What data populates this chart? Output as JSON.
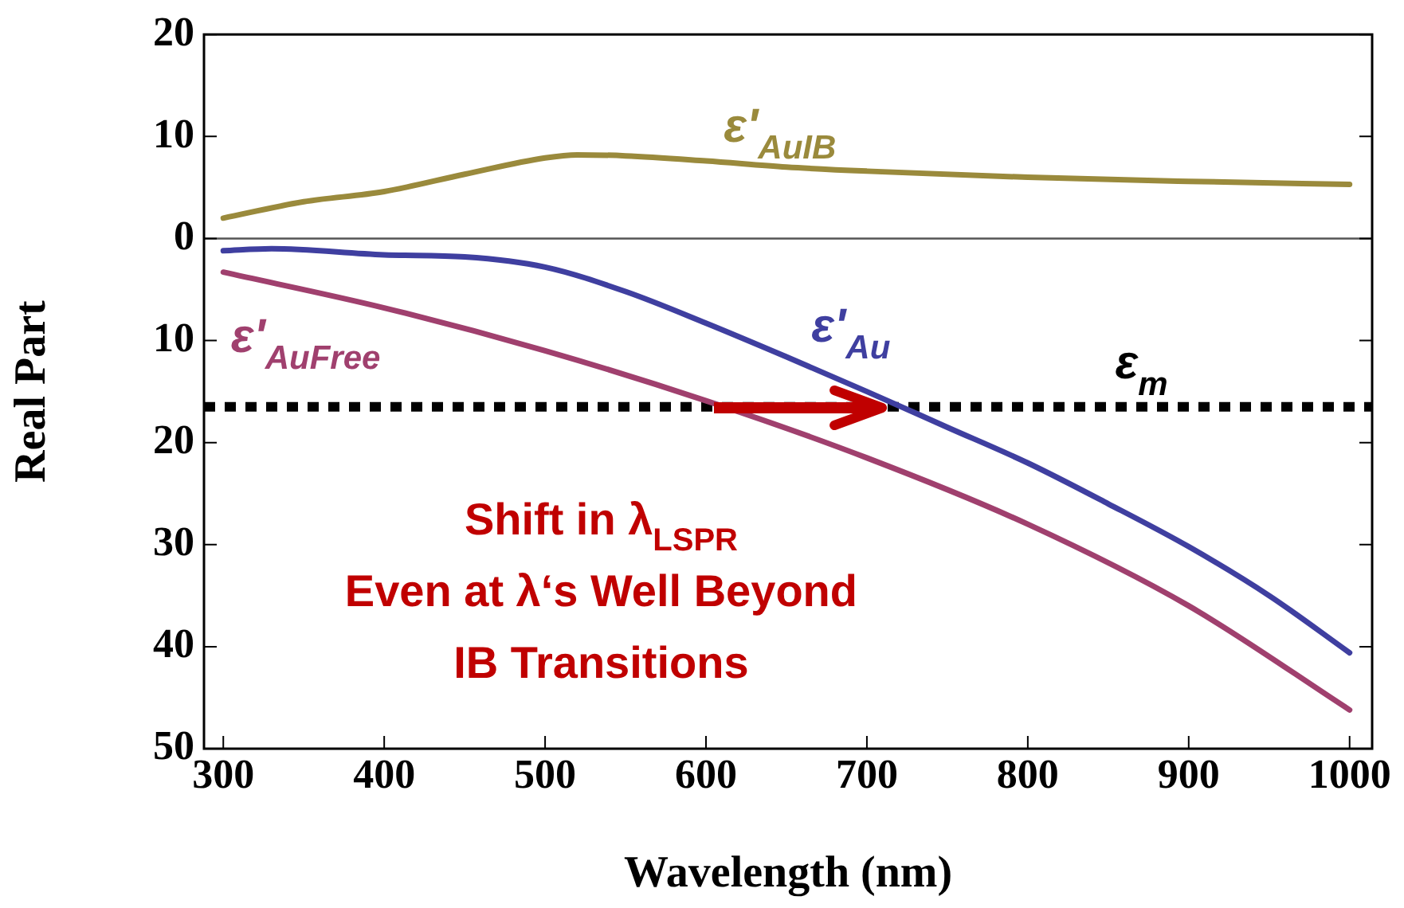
{
  "chart_data": {
    "type": "line",
    "xlabel": "Wavelength (nm)",
    "ylabel": "Real Part",
    "xlim": [
      288,
      1014
    ],
    "xticks": [
      300,
      400,
      500,
      600,
      700,
      800,
      900,
      1000
    ],
    "ylim": [
      -50,
      20
    ],
    "yticks": [
      {
        "value": -50,
        "label": "50"
      },
      {
        "value": -40,
        "label": "40"
      },
      {
        "value": -30,
        "label": "30"
      },
      {
        "value": -20,
        "label": "20"
      },
      {
        "value": -10,
        "label": "10"
      },
      0,
      10,
      20
    ],
    "grid": false,
    "legend": false,
    "marker": "none",
    "line_style": "solid",
    "series": [
      {
        "name": "ε'$_{AuIB}$",
        "color": "#9a8a3c",
        "x": [
          300,
          350,
          400,
          450,
          500,
          520,
          550,
          600,
          650,
          700,
          800,
          900,
          1000
        ],
        "values": [
          2.0,
          3.6,
          4.6,
          6.3,
          7.9,
          8.2,
          8.1,
          7.6,
          7.0,
          6.6,
          6.0,
          5.6,
          5.3
        ]
      },
      {
        "name": "ε'$_{Au}$",
        "color": "#3f3fa0",
        "x": [
          300,
          330,
          400,
          450,
          500,
          550,
          600,
          650,
          700,
          750,
          800,
          850,
          900,
          950,
          1000
        ],
        "values": [
          -1.2,
          -1.0,
          -1.6,
          -1.8,
          -2.8,
          -5.2,
          -8.3,
          -11.6,
          -15.0,
          -18.5,
          -22.0,
          -26.0,
          -30.2,
          -35.0,
          -40.6
        ]
      },
      {
        "name": "ε'$_{AuFree}$",
        "color": "#a0406e",
        "x": [
          300,
          400,
          500,
          600,
          700,
          800,
          900,
          1000
        ],
        "values": [
          -3.3,
          -6.8,
          -11.0,
          -15.9,
          -21.5,
          -28.0,
          -36.0,
          -46.2
        ]
      }
    ],
    "ref_lines": [
      {
        "axis": "y",
        "value": 0,
        "color": "#555555",
        "line_style": "solid"
      },
      {
        "axis": "y",
        "value": -16.5,
        "color": "#000000",
        "line_style": "dotted",
        "label": "ε$_{m}$"
      }
    ],
    "annotations": [
      "Shift in λ$_{LSPR}$",
      "Even at λ‘s Well Beyond",
      "IB Transitions"
    ]
  }
}
